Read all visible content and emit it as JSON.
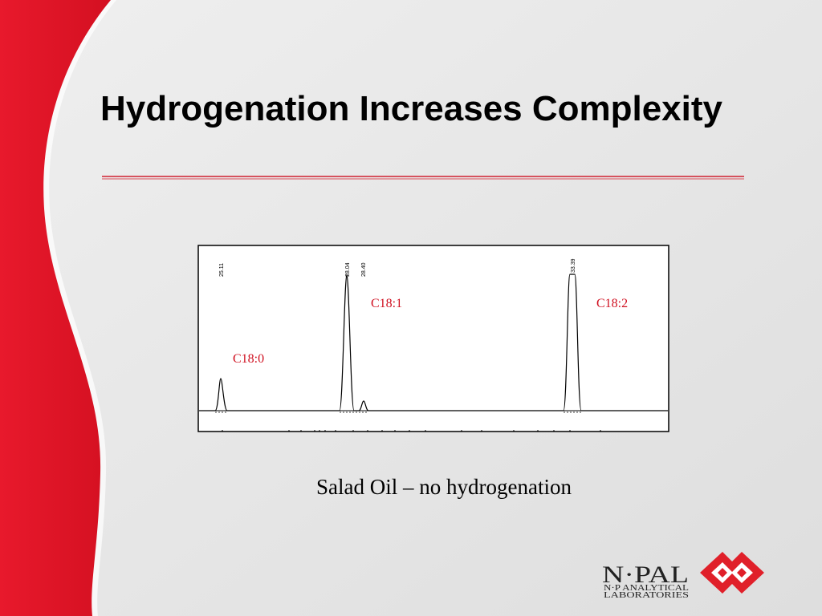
{
  "title": "Hydrogenation Increases Complexity",
  "chromatogram": {
    "peak_times": [
      "25.11",
      "28.04",
      "28.40",
      "33.39"
    ],
    "labels": [
      "C18:0",
      "C18:1",
      "C18:2"
    ]
  },
  "caption": "Salad Oil – no hydrogenation",
  "logo": {
    "name": "N·PAL",
    "line1": "N·P ANALYTICAL",
    "line2": "LABORATORIES"
  }
}
